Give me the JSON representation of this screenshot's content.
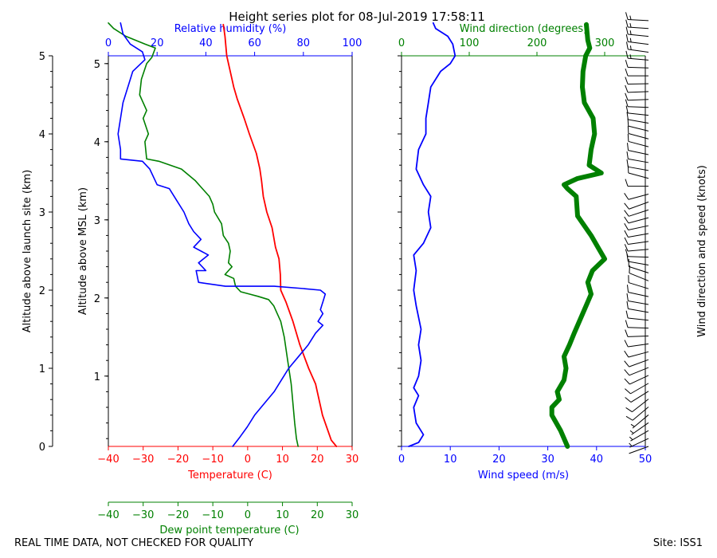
{
  "title": "Height series plot for 08-Jul-2019 17:58:11",
  "footer": {
    "left": "REAL TIME DATA, NOT CHECKED FOR QUALITY",
    "right": "Site: ISS1"
  },
  "colors": {
    "temperature": "#ff0000",
    "dewpoint": "#008000",
    "rh": "#0000ff",
    "wind_speed": "#0000ff",
    "wind_dir": "#008000",
    "text": "#000000"
  },
  "chart_data": [
    {
      "type": "line",
      "name": "thermo",
      "ylabel_left_outer": "Altitude above launch site (km)",
      "ylabel_left_inner": "Altitude above MSL (km)",
      "y_msl_ticks": [
        "1",
        "2",
        "3",
        "4",
        "5"
      ],
      "y_msl_values": [
        0.9,
        1.9,
        2.9,
        3.9,
        4.9
      ],
      "y_agl_ticks": [
        "0",
        "1",
        "2",
        "3",
        "4",
        "5"
      ],
      "y_agl_values": [
        0,
        1,
        2,
        3,
        4,
        5
      ],
      "ylim_agl": [
        0,
        5
      ],
      "xaxis_bottom": {
        "label": "Temperature (C)",
        "ticks": [
          "−40",
          "−30",
          "−20",
          "−10",
          "0",
          "10",
          "20",
          "30"
        ],
        "lim": [
          -40,
          30
        ]
      },
      "xaxis_top": {
        "label": "Relative humidity (%)",
        "ticks": [
          "0",
          "20",
          "40",
          "60",
          "80",
          "100"
        ],
        "lim": [
          0,
          100
        ]
      },
      "xaxis_dewpoint": {
        "label": "Dew point temperature (C)",
        "ticks": [
          "−40",
          "−30",
          "−20",
          "−10",
          "0",
          "10",
          "20",
          "30"
        ],
        "lim": [
          -40,
          30
        ]
      },
      "series": [
        {
          "name": "Temperature",
          "points": [
            [
              25.5,
              0.0
            ],
            [
              24.0,
              0.08
            ],
            [
              21.5,
              0.4
            ],
            [
              19.5,
              0.8
            ],
            [
              17.5,
              1.0
            ],
            [
              15.0,
              1.3
            ],
            [
              13.0,
              1.6
            ],
            [
              11.0,
              1.85
            ],
            [
              9.5,
              2.0
            ],
            [
              9.4,
              2.2
            ],
            [
              9.0,
              2.4
            ],
            [
              8.0,
              2.55
            ],
            [
              7.0,
              2.8
            ],
            [
              5.5,
              3.0
            ],
            [
              4.5,
              3.2
            ],
            [
              4.0,
              3.4
            ],
            [
              3.5,
              3.55
            ],
            [
              2.5,
              3.75
            ],
            [
              0.5,
              4.0
            ],
            [
              -1.0,
              4.2
            ],
            [
              -3.0,
              4.45
            ],
            [
              -4.0,
              4.6
            ],
            [
              -5.0,
              4.8
            ],
            [
              -6.0,
              5.0
            ],
            [
              -6.5,
              5.25
            ],
            [
              -7.0,
              5.4
            ]
          ]
        },
        {
          "name": "Dew point",
          "points": [
            [
              14.5,
              0.0
            ],
            [
              14.0,
              0.1
            ],
            [
              13.5,
              0.3
            ],
            [
              13.0,
              0.55
            ],
            [
              12.5,
              0.8
            ],
            [
              11.5,
              1.1
            ],
            [
              10.5,
              1.4
            ],
            [
              9.5,
              1.6
            ],
            [
              8.5,
              1.7
            ],
            [
              7.5,
              1.8
            ],
            [
              6.0,
              1.88
            ],
            [
              3.0,
              1.92
            ],
            [
              0.5,
              1.95
            ],
            [
              -2.0,
              1.98
            ],
            [
              -3.5,
              2.05
            ],
            [
              -4.0,
              2.15
            ],
            [
              -6.5,
              2.2
            ],
            [
              -4.5,
              2.3
            ],
            [
              -5.5,
              2.35
            ],
            [
              -5.0,
              2.5
            ],
            [
              -5.5,
              2.6
            ],
            [
              -7.0,
              2.7
            ],
            [
              -7.5,
              2.85
            ],
            [
              -9.5,
              3.0
            ],
            [
              -10.0,
              3.1
            ],
            [
              -11.0,
              3.2
            ],
            [
              -13.0,
              3.3
            ],
            [
              -15.0,
              3.4
            ],
            [
              -19.0,
              3.55
            ],
            [
              -25.5,
              3.65
            ],
            [
              -29.0,
              3.68
            ],
            [
              -29.5,
              3.9
            ],
            [
              -28.5,
              4.0
            ],
            [
              -30.0,
              4.2
            ],
            [
              -29.0,
              4.3
            ],
            [
              -31.0,
              4.5
            ],
            [
              -30.5,
              4.7
            ],
            [
              -29.0,
              4.9
            ],
            [
              -27.5,
              4.98
            ],
            [
              -26.5,
              5.1
            ],
            [
              -29.5,
              5.15
            ],
            [
              -35.0,
              5.25
            ],
            [
              -38.5,
              5.35
            ],
            [
              -40.0,
              5.42
            ]
          ]
        },
        {
          "name": "Relative humidity",
          "axis": "rh",
          "points": [
            [
              51,
              0.0
            ],
            [
              54,
              0.12
            ],
            [
              57,
              0.25
            ],
            [
              60,
              0.4
            ],
            [
              64,
              0.55
            ],
            [
              68,
              0.7
            ],
            [
              70,
              0.8
            ],
            [
              72,
              0.9
            ],
            [
              74,
              1.0
            ],
            [
              78,
              1.15
            ],
            [
              82,
              1.3
            ],
            [
              85,
              1.45
            ],
            [
              88,
              1.55
            ],
            [
              86,
              1.6
            ],
            [
              88,
              1.7
            ],
            [
              87,
              1.75
            ],
            [
              88,
              1.85
            ],
            [
              89,
              1.95
            ],
            [
              87,
              2.0
            ],
            [
              80,
              2.02
            ],
            [
              68,
              2.05
            ],
            [
              48,
              2.05
            ],
            [
              37,
              2.1
            ],
            [
              36,
              2.25
            ],
            [
              40,
              2.25
            ],
            [
              37,
              2.35
            ],
            [
              41,
              2.45
            ],
            [
              35,
              2.55
            ],
            [
              38,
              2.65
            ],
            [
              35,
              2.75
            ],
            [
              33,
              2.85
            ],
            [
              31,
              3.0
            ],
            [
              28,
              3.15
            ],
            [
              25,
              3.3
            ],
            [
              20,
              3.35
            ],
            [
              17,
              3.55
            ],
            [
              14,
              3.65
            ],
            [
              5,
              3.68
            ],
            [
              5,
              3.8
            ],
            [
              4,
              4.0
            ],
            [
              5,
              4.2
            ],
            [
              6,
              4.4
            ],
            [
              8,
              4.6
            ],
            [
              10,
              4.8
            ],
            [
              15,
              4.95
            ],
            [
              14,
              5.05
            ],
            [
              9,
              5.15
            ],
            [
              6,
              5.28
            ],
            [
              5,
              5.42
            ]
          ]
        }
      ]
    },
    {
      "type": "line",
      "name": "wind",
      "xaxis_bottom": {
        "label": "Wind speed (m/s)",
        "ticks": [
          "0",
          "10",
          "20",
          "30",
          "40",
          "50"
        ],
        "lim": [
          0,
          50
        ]
      },
      "xaxis_top": {
        "label": "Wind direction (degrees)",
        "ticks": [
          "0",
          "100",
          "200",
          "300"
        ],
        "lim": [
          0,
          360
        ]
      },
      "ylim_agl": [
        0,
        5
      ],
      "series": [
        {
          "name": "Wind speed",
          "points": [
            [
              1.5,
              0.0
            ],
            [
              3.5,
              0.05
            ],
            [
              4.5,
              0.15
            ],
            [
              3.0,
              0.3
            ],
            [
              2.5,
              0.5
            ],
            [
              3.5,
              0.65
            ],
            [
              2.5,
              0.75
            ],
            [
              3.5,
              0.9
            ],
            [
              4.0,
              1.1
            ],
            [
              3.5,
              1.3
            ],
            [
              4.0,
              1.5
            ],
            [
              3.0,
              1.8
            ],
            [
              2.5,
              2.0
            ],
            [
              3.0,
              2.25
            ],
            [
              2.5,
              2.45
            ],
            [
              4.5,
              2.6
            ],
            [
              6.0,
              2.8
            ],
            [
              5.5,
              3.0
            ],
            [
              6.0,
              3.2
            ],
            [
              4.5,
              3.35
            ],
            [
              3.0,
              3.55
            ],
            [
              3.5,
              3.8
            ],
            [
              5.0,
              4.0
            ],
            [
              5.0,
              4.2
            ],
            [
              5.5,
              4.4
            ],
            [
              6.0,
              4.6
            ],
            [
              8.0,
              4.8
            ],
            [
              10.0,
              4.9
            ],
            [
              11.0,
              5.0
            ],
            [
              10.5,
              5.15
            ],
            [
              9.5,
              5.25
            ],
            [
              7.0,
              5.35
            ],
            [
              6.5,
              5.42
            ]
          ]
        },
        {
          "name": "Wind direction",
          "axis": "wdir",
          "points": [
            [
              245,
              0.0
            ],
            [
              235,
              0.2
            ],
            [
              222,
              0.4
            ],
            [
              222,
              0.5
            ],
            [
              233,
              0.6
            ],
            [
              230,
              0.7
            ],
            [
              240,
              0.85
            ],
            [
              243,
              1.0
            ],
            [
              240,
              1.15
            ],
            [
              248,
              1.3
            ],
            [
              255,
              1.45
            ],
            [
              265,
              1.65
            ],
            [
              275,
              1.85
            ],
            [
              280,
              1.95
            ],
            [
              275,
              2.1
            ],
            [
              282,
              2.25
            ],
            [
              300,
              2.4
            ],
            [
              290,
              2.55
            ],
            [
              280,
              2.7
            ],
            [
              260,
              2.95
            ],
            [
              258,
              3.2
            ],
            [
              245,
              3.3
            ],
            [
              240,
              3.35
            ],
            [
              260,
              3.43
            ],
            [
              295,
              3.5
            ],
            [
              277,
              3.6
            ],
            [
              280,
              3.8
            ],
            [
              285,
              4.0
            ],
            [
              283,
              4.2
            ],
            [
              270,
              4.4
            ],
            [
              267,
              4.6
            ],
            [
              268,
              4.8
            ],
            [
              272,
              5.0
            ],
            [
              278,
              5.1
            ],
            [
              275,
              5.2
            ],
            [
              273,
              5.4
            ]
          ]
        }
      ]
    }
  ],
  "barbs": {
    "label": "Wind direction and speed (knots)",
    "note": "direction in degrees, speed in knots; barbs plotted from 0 to 5.4 km",
    "entries": [
      [
        250,
        3
      ],
      [
        245,
        5
      ],
      [
        240,
        5
      ],
      [
        235,
        8
      ],
      [
        230,
        8
      ],
      [
        230,
        10
      ],
      [
        232,
        10
      ],
      [
        238,
        10
      ],
      [
        240,
        10
      ],
      [
        245,
        10
      ],
      [
        248,
        10
      ],
      [
        250,
        10
      ],
      [
        255,
        10
      ],
      [
        262,
        10
      ],
      [
        268,
        10
      ],
      [
        272,
        10
      ],
      [
        276,
        10
      ],
      [
        280,
        10
      ],
      [
        280,
        10
      ],
      [
        282,
        10
      ],
      [
        287,
        10
      ],
      [
        292,
        10
      ],
      [
        288,
        10
      ],
      [
        280,
        10
      ],
      [
        272,
        10
      ],
      [
        265,
        10
      ],
      [
        262,
        10
      ],
      [
        260,
        10
      ],
      [
        258,
        10
      ],
      [
        255,
        10
      ],
      [
        252,
        10
      ],
      [
        250,
        10
      ],
      [
        255,
        10
      ],
      [
        270,
        10
      ],
      [
        285,
        10
      ],
      [
        280,
        10
      ],
      [
        280,
        10
      ],
      [
        282,
        10
      ],
      [
        285,
        10
      ],
      [
        285,
        10
      ],
      [
        284,
        10
      ],
      [
        280,
        10
      ],
      [
        276,
        10
      ],
      [
        272,
        10
      ],
      [
        268,
        10
      ],
      [
        268,
        10
      ],
      [
        269,
        10
      ],
      [
        270,
        10
      ],
      [
        272,
        10
      ],
      [
        275,
        15
      ],
      [
        278,
        15
      ],
      [
        277,
        15
      ],
      [
        276,
        15
      ],
      [
        274,
        15
      ],
      [
        273,
        15
      ]
    ]
  }
}
